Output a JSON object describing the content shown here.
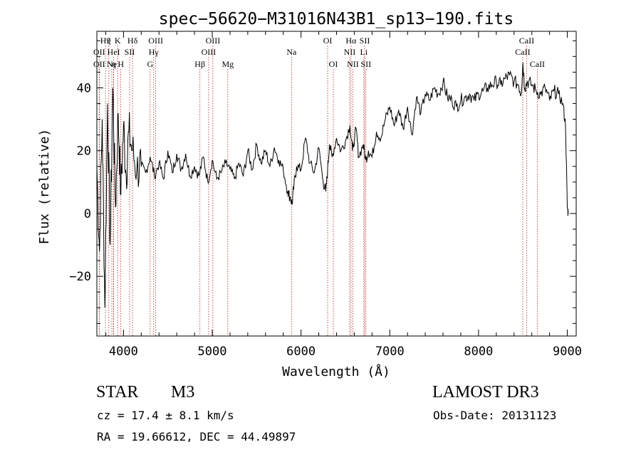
{
  "chart_data": {
    "type": "line",
    "title": "spec−56620−M31016N43B1_sp13−190.fits",
    "xlabel": "Wavelength (Å)",
    "ylabel": "Flux (relative)",
    "xlim": [
      3700,
      9100
    ],
    "ylim": [
      -39,
      58
    ],
    "xticks": [
      4000,
      5000,
      6000,
      7000,
      8000,
      9000
    ],
    "xtick_labels": [
      "4000",
      "5000",
      "6000",
      "7000",
      "8000",
      "9000"
    ],
    "yticks": [
      -20,
      0,
      20,
      40
    ],
    "ytick_labels": [
      "−20",
      "0",
      "20",
      "40"
    ],
    "grid": false,
    "series": [
      {
        "name": "spectrum",
        "x": [
          3700,
          3730,
          3760,
          3790,
          3820,
          3850,
          3880,
          3910,
          3940,
          3970,
          4000,
          4030,
          4060,
          4100,
          4150,
          4200,
          4250,
          4300,
          4350,
          4400,
          4450,
          4500,
          4550,
          4600,
          4650,
          4700,
          4750,
          4800,
          4850,
          4900,
          4950,
          5000,
          5050,
          5100,
          5150,
          5200,
          5250,
          5300,
          5350,
          5400,
          5450,
          5500,
          5550,
          5600,
          5650,
          5700,
          5750,
          5800,
          5850,
          5880,
          5900,
          5920,
          5950,
          6000,
          6050,
          6100,
          6150,
          6200,
          6250,
          6280,
          6300,
          6320,
          6350,
          6400,
          6450,
          6500,
          6550,
          6580,
          6620,
          6650,
          6700,
          6730,
          6760,
          6800,
          6850,
          6900,
          6950,
          7000,
          7050,
          7100,
          7150,
          7200,
          7250,
          7300,
          7350,
          7400,
          7450,
          7500,
          7550,
          7600,
          7650,
          7700,
          7750,
          7800,
          7850,
          7900,
          7950,
          8000,
          8050,
          8100,
          8150,
          8200,
          8250,
          8300,
          8350,
          8400,
          8450,
          8480,
          8500,
          8520,
          8550,
          8600,
          8650,
          8700,
          8750,
          8800,
          8850,
          8900,
          8950,
          8980,
          9000,
          9010
        ],
        "y": [
          15,
          -12,
          30,
          -30,
          35,
          -10,
          40,
          2,
          32,
          6,
          28,
          12,
          26,
          20,
          14,
          15,
          13,
          18,
          12,
          16,
          11,
          20,
          13,
          19,
          14,
          19,
          12,
          15,
          12,
          18,
          10,
          17,
          11,
          13,
          16,
          14,
          11,
          16,
          12,
          20,
          14,
          22,
          16,
          20,
          15,
          21,
          17,
          14,
          7,
          5,
          3,
          9,
          15,
          14,
          24,
          16,
          13,
          21,
          10,
          7,
          14,
          22,
          18,
          24,
          20,
          23,
          28,
          20,
          27,
          18,
          22,
          17,
          20,
          18,
          26,
          24,
          30,
          34,
          28,
          33,
          27,
          34,
          25,
          37,
          32,
          38,
          36,
          40,
          38,
          42,
          37,
          36,
          34,
          36,
          37,
          38,
          36,
          38,
          39,
          40,
          41,
          42,
          41,
          43,
          44,
          42,
          41,
          38,
          48,
          40,
          42,
          41,
          39,
          38,
          40,
          36,
          39,
          38,
          35,
          28,
          2,
          0
        ]
      }
    ],
    "line_markers": [
      {
        "x": 3797,
        "row": 1,
        "label": "H9"
      },
      {
        "x": 3727,
        "row": 2,
        "label": "OII"
      },
      {
        "x": 3727,
        "row": 3,
        "label": "OII"
      },
      {
        "x": 3835,
        "row": 1,
        "label": "ζ"
      },
      {
        "x": 3889,
        "row": 2,
        "label": "HeI"
      },
      {
        "x": 3869,
        "row": 3,
        "label": "Ne"
      },
      {
        "x": 3889,
        "row": 3,
        "label": "η"
      },
      {
        "x": 3934,
        "row": 1,
        "label": "K"
      },
      {
        "x": 3970,
        "row": 3,
        "label": "H"
      },
      {
        "x": 4069,
        "row": 2,
        "label": "SII"
      },
      {
        "x": 4102,
        "row": 1,
        "label": "Hδ"
      },
      {
        "x": 4300,
        "row": 3,
        "label": "G"
      },
      {
        "x": 4340,
        "row": 2,
        "label": "Hγ"
      },
      {
        "x": 4363,
        "row": 1,
        "label": "OIII"
      },
      {
        "x": 4861,
        "row": 3,
        "label": "Hβ"
      },
      {
        "x": 4959,
        "row": 2,
        "label": "OIII"
      },
      {
        "x": 5007,
        "row": 1,
        "label": "OIII"
      },
      {
        "x": 5175,
        "row": 3,
        "label": "Mg"
      },
      {
        "x": 5893,
        "row": 2,
        "label": "Na"
      },
      {
        "x": 6300,
        "row": 1,
        "label": "OI"
      },
      {
        "x": 6364,
        "row": 3,
        "label": "OI"
      },
      {
        "x": 6548,
        "row": 2,
        "label": "NII"
      },
      {
        "x": 6563,
        "row": 1,
        "label": "Hα"
      },
      {
        "x": 6584,
        "row": 3,
        "label": "NII"
      },
      {
        "x": 6708,
        "row": 2,
        "label": "Li"
      },
      {
        "x": 6717,
        "row": 1,
        "label": "SII"
      },
      {
        "x": 6731,
        "row": 3,
        "label": "SII"
      },
      {
        "x": 8498,
        "row": 2,
        "label": "CaII"
      },
      {
        "x": 8542,
        "row": 1,
        "label": "CaII"
      },
      {
        "x": 8662,
        "row": 3,
        "label": "CaII"
      }
    ]
  },
  "info": {
    "class_label": "STAR",
    "subclass": "M3",
    "survey": "LAMOST DR3",
    "cz": "cz = 17.4 ± 8.1 km/s",
    "obs_date": "Obs-Date: 20131123",
    "coords": "RA =  19.66612, DEC =  44.49897"
  }
}
